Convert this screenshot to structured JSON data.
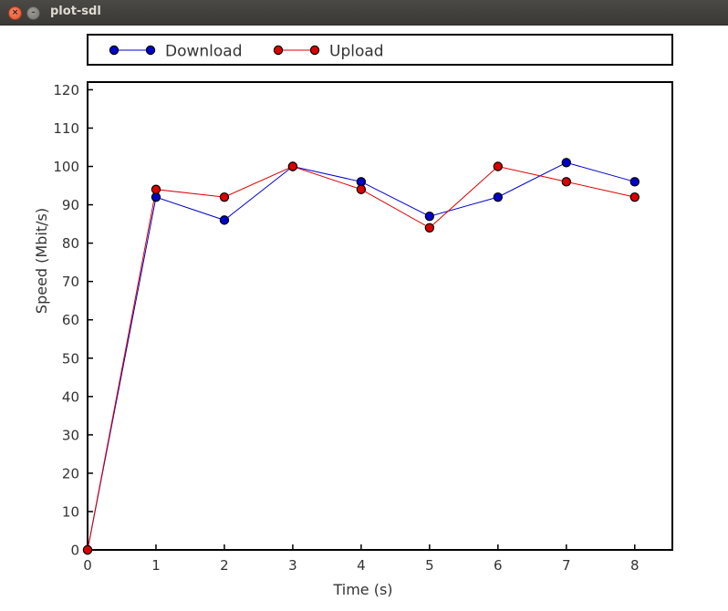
{
  "window": {
    "title": "plot-sdl",
    "close_glyph": "×",
    "minimize_glyph": "–"
  },
  "chart_data": {
    "type": "line",
    "title": "",
    "xlabel": "Time (s)",
    "ylabel": "Speed (Mbit/s)",
    "x": [
      0,
      1,
      2,
      3,
      4,
      5,
      6,
      7,
      8
    ],
    "xlim": [
      0,
      8.55
    ],
    "ylim": [
      0,
      122
    ],
    "xticks": [
      0,
      1,
      2,
      3,
      4,
      5,
      6,
      7,
      8
    ],
    "yticks": [
      0,
      10,
      20,
      30,
      40,
      50,
      60,
      70,
      80,
      90,
      100,
      110,
      120
    ],
    "grid": false,
    "legend_position": "top",
    "series": [
      {
        "name": "Download",
        "color": "#0000cc",
        "values": [
          0,
          92,
          86,
          100,
          96,
          87,
          92,
          101,
          96
        ]
      },
      {
        "name": "Upload",
        "color": "#dd0000",
        "values": [
          0,
          94,
          92,
          100,
          94,
          84,
          100,
          96,
          92
        ]
      }
    ]
  }
}
